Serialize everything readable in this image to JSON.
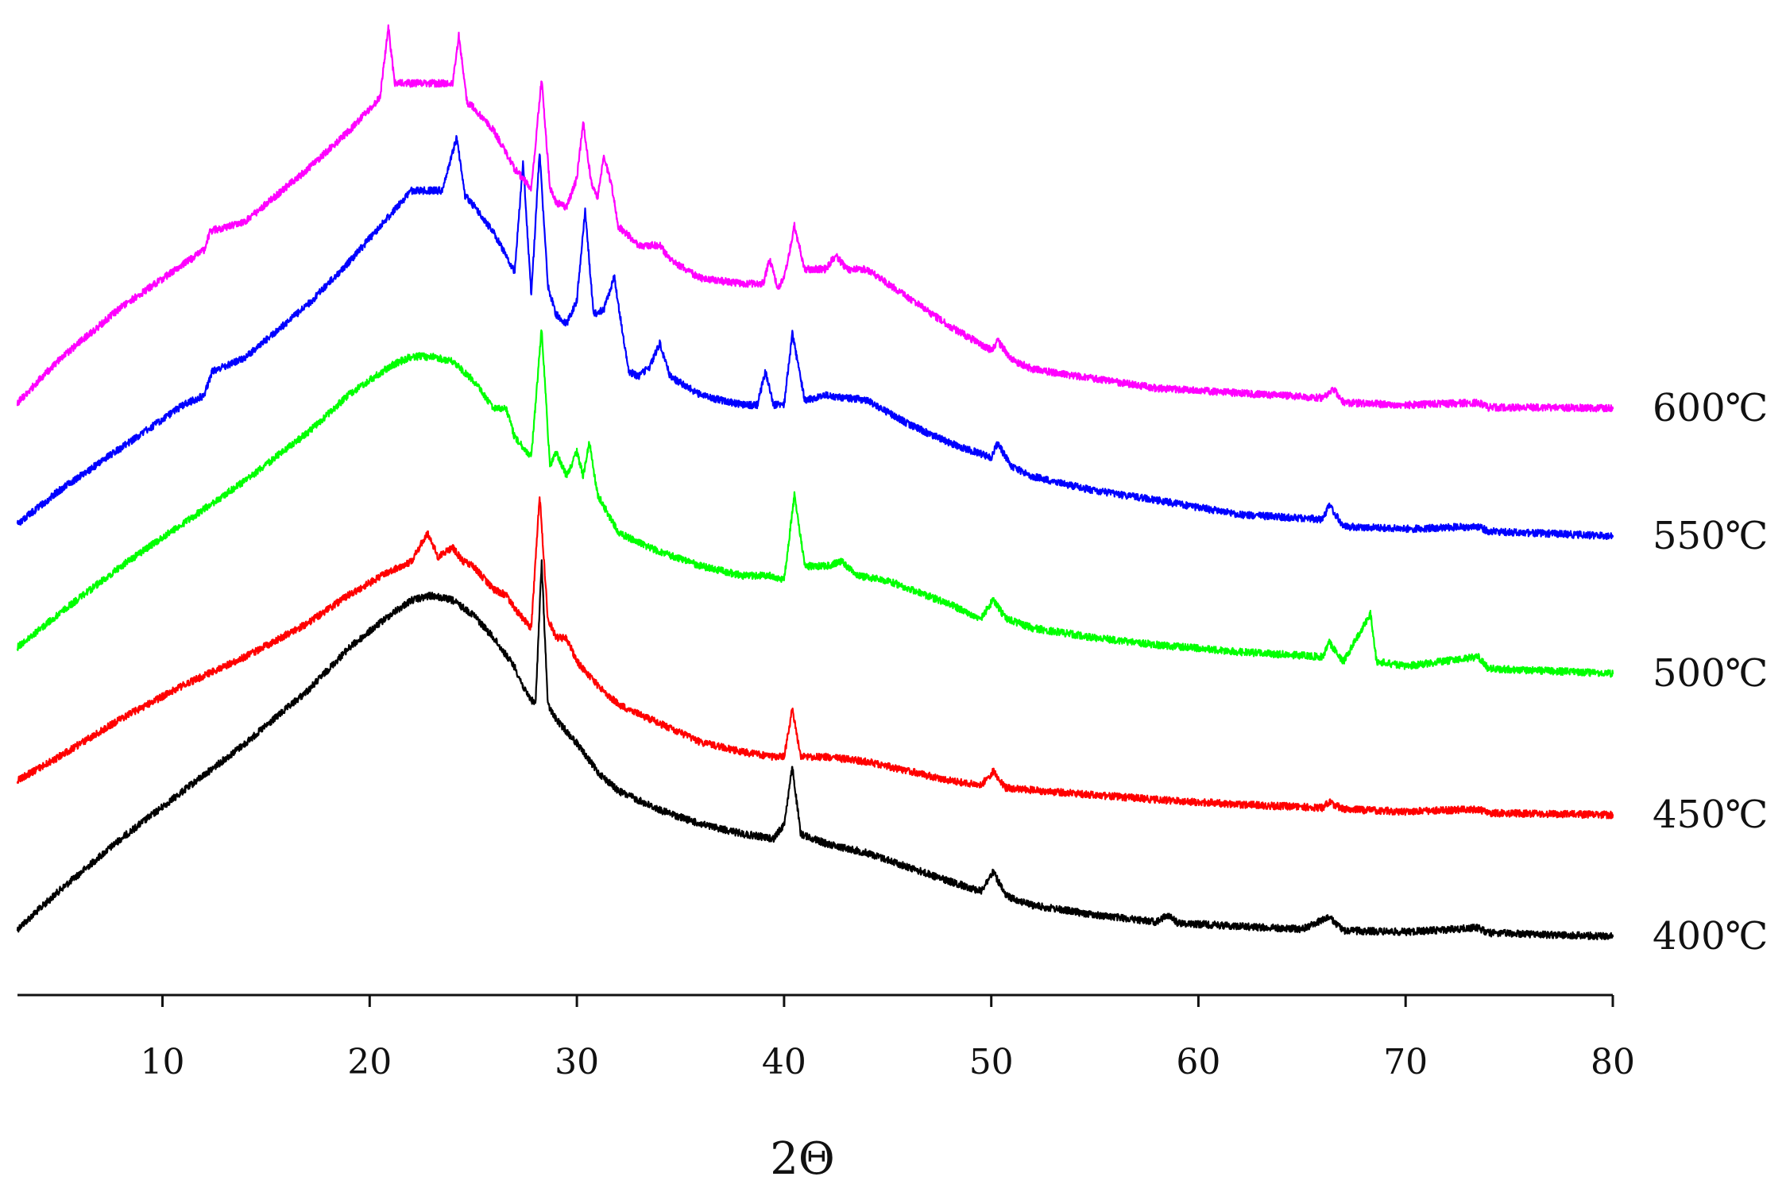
{
  "chart_data": {
    "type": "line",
    "title": "",
    "xlabel": "2Θ",
    "ylabel": "",
    "xlim": [
      3,
      80
    ],
    "x_ticks": [
      "10",
      "20",
      "30",
      "40",
      "50",
      "60",
      "70",
      "80"
    ],
    "y_axis_shown": false,
    "grid": false,
    "legend": "labels at right end of each trace",
    "series": [
      {
        "name": "400℃",
        "color": "#000000",
        "x": [
          3,
          5,
          8,
          11,
          14,
          17,
          19,
          21,
          22,
          23,
          24,
          25,
          26,
          27,
          27.5,
          28,
          28.3,
          28.6,
          29,
          30,
          31,
          32,
          34,
          36,
          38,
          39.5,
          40,
          40.4,
          40.8,
          42,
          44,
          46,
          48,
          49.5,
          50.1,
          50.7,
          52,
          55,
          58,
          58.5,
          59,
          62,
          65,
          66.3,
          67,
          70,
          73.5,
          74,
          77,
          80
        ],
        "values": [
          0.0,
          0.08,
          0.19,
          0.29,
          0.39,
          0.5,
          0.59,
          0.66,
          0.69,
          0.7,
          0.69,
          0.66,
          0.61,
          0.55,
          0.5,
          0.47,
          0.77,
          0.47,
          0.44,
          0.39,
          0.33,
          0.29,
          0.25,
          0.22,
          0.2,
          0.19,
          0.22,
          0.34,
          0.2,
          0.18,
          0.16,
          0.13,
          0.1,
          0.08,
          0.12,
          0.07,
          0.05,
          0.03,
          0.015,
          0.03,
          0.013,
          0.006,
          0.0,
          0.025,
          -0.003,
          -0.006,
          0.003,
          -0.008,
          -0.012,
          -0.015
        ]
      },
      {
        "name": "450℃",
        "color": "#ff0000",
        "x": [
          3,
          5,
          8,
          11,
          14,
          17,
          19,
          21,
          22,
          22.8,
          23.3,
          24,
          24.5,
          25,
          26,
          26.6,
          27,
          27.8,
          28.2,
          28.6,
          29,
          29.5,
          30,
          31,
          32,
          34,
          36,
          38,
          39.5,
          40,
          40.4,
          40.8,
          42,
          44,
          46,
          48,
          49.5,
          50.1,
          50.7,
          52,
          55,
          58,
          62,
          66,
          66.3,
          67,
          70,
          73.5,
          74,
          77,
          80
        ],
        "values": [
          0.0,
          0.05,
          0.13,
          0.2,
          0.26,
          0.33,
          0.39,
          0.44,
          0.46,
          0.52,
          0.47,
          0.49,
          0.46,
          0.45,
          0.4,
          0.39,
          0.36,
          0.32,
          0.6,
          0.34,
          0.3,
          0.3,
          0.25,
          0.2,
          0.16,
          0.12,
          0.08,
          0.06,
          0.05,
          0.05,
          0.15,
          0.05,
          0.05,
          0.04,
          0.02,
          0.0,
          -0.01,
          0.02,
          -0.015,
          -0.02,
          -0.03,
          -0.04,
          -0.05,
          -0.057,
          -0.045,
          -0.06,
          -0.065,
          -0.06,
          -0.068,
          -0.07,
          -0.072
        ]
      },
      {
        "name": "500℃",
        "color": "#00ff00",
        "x": [
          3,
          5,
          8,
          11,
          14,
          17,
          19,
          21,
          22,
          23,
          24,
          25,
          26,
          26.6,
          27,
          27.8,
          28.3,
          28.7,
          29,
          29.5,
          30,
          30.3,
          30.6,
          31,
          31.5,
          32,
          33,
          34,
          36,
          38,
          39.3,
          40,
          40.5,
          41,
          42,
          42.8,
          43.5,
          45,
          48,
          49.5,
          50.1,
          50.7,
          52,
          55,
          58,
          62,
          66,
          66.3,
          67,
          68.3,
          68.6,
          70,
          73.5,
          74,
          77,
          80
        ],
        "values": [
          0.0,
          0.07,
          0.17,
          0.26,
          0.35,
          0.45,
          0.53,
          0.59,
          0.61,
          0.61,
          0.6,
          0.56,
          0.5,
          0.5,
          0.44,
          0.4,
          0.67,
          0.38,
          0.41,
          0.36,
          0.41,
          0.36,
          0.43,
          0.32,
          0.28,
          0.24,
          0.22,
          0.2,
          0.17,
          0.15,
          0.15,
          0.14,
          0.32,
          0.17,
          0.17,
          0.18,
          0.15,
          0.14,
          0.09,
          0.06,
          0.1,
          0.06,
          0.04,
          0.02,
          0.005,
          -0.01,
          -0.02,
          0.01,
          -0.03,
          0.07,
          -0.03,
          -0.04,
          -0.02,
          -0.045,
          -0.05,
          -0.055
        ]
      },
      {
        "name": "550℃",
        "color": "#0000ff",
        "x": [
          3,
          5,
          8,
          11,
          12,
          12.4,
          14,
          17,
          19,
          21,
          22,
          23,
          23.5,
          24.2,
          24.6,
          25,
          26,
          27,
          27.4,
          27.8,
          28.2,
          28.6,
          29,
          29.5,
          30,
          30.4,
          30.8,
          31.3,
          31.8,
          32.5,
          33,
          33.5,
          34,
          34.5,
          36,
          38,
          38.7,
          39.1,
          39.5,
          40,
          40.4,
          41,
          42,
          44,
          46,
          48,
          50,
          50.3,
          51,
          52,
          55,
          58,
          62,
          66,
          66.3,
          67,
          70,
          73.5,
          74,
          77,
          80
        ],
        "values": [
          0.0,
          0.07,
          0.16,
          0.25,
          0.27,
          0.32,
          0.35,
          0.46,
          0.55,
          0.65,
          0.7,
          0.7,
          0.7,
          0.81,
          0.69,
          0.67,
          0.61,
          0.53,
          0.76,
          0.48,
          0.78,
          0.5,
          0.44,
          0.42,
          0.47,
          0.66,
          0.44,
          0.45,
          0.52,
          0.32,
          0.31,
          0.33,
          0.38,
          0.31,
          0.27,
          0.25,
          0.25,
          0.32,
          0.25,
          0.25,
          0.4,
          0.26,
          0.27,
          0.26,
          0.21,
          0.17,
          0.14,
          0.17,
          0.12,
          0.1,
          0.07,
          0.05,
          0.02,
          0.01,
          0.04,
          -0.005,
          -0.01,
          -0.005,
          -0.015,
          -0.02,
          -0.025
        ]
      },
      {
        "name": "600℃",
        "color": "#ff00ff",
        "x": [
          3,
          5,
          8,
          11,
          12,
          12.3,
          14,
          17,
          19,
          20.5,
          20.9,
          21.2,
          22,
          23,
          24,
          24.3,
          24.7,
          25,
          26,
          27,
          27.8,
          28.3,
          28.7,
          29,
          29.5,
          30,
          30.3,
          30.7,
          31,
          31.3,
          31.7,
          32,
          33,
          34,
          34.5,
          36,
          38,
          39,
          39.3,
          39.7,
          40,
          40.5,
          41,
          42,
          42.5,
          43,
          44,
          46,
          48,
          50,
          50.3,
          51,
          52,
          55,
          58,
          62,
          66,
          66.5,
          67,
          70,
          73.5,
          74,
          77,
          80
        ],
        "values": [
          0.0,
          0.09,
          0.2,
          0.29,
          0.32,
          0.36,
          0.38,
          0.49,
          0.57,
          0.64,
          0.79,
          0.67,
          0.67,
          0.67,
          0.67,
          0.77,
          0.63,
          0.62,
          0.57,
          0.49,
          0.45,
          0.68,
          0.45,
          0.42,
          0.41,
          0.47,
          0.59,
          0.46,
          0.43,
          0.52,
          0.45,
          0.37,
          0.33,
          0.33,
          0.3,
          0.26,
          0.25,
          0.25,
          0.3,
          0.24,
          0.26,
          0.37,
          0.28,
          0.28,
          0.31,
          0.28,
          0.28,
          0.22,
          0.16,
          0.11,
          0.13,
          0.09,
          0.07,
          0.05,
          0.03,
          0.02,
          0.01,
          0.03,
          0.0,
          -0.005,
          0.0,
          -0.01,
          -0.01,
          -0.012
        ]
      }
    ]
  }
}
